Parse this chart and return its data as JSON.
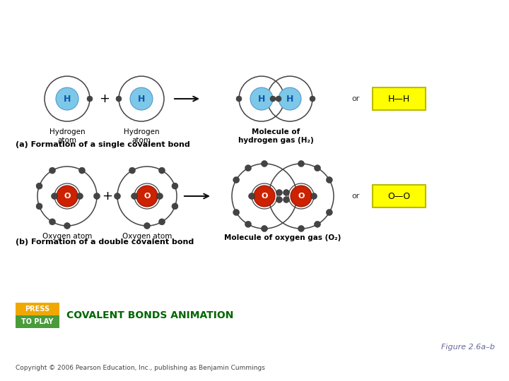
{
  "background_color": "#ffffff",
  "section_a_label": "(a) Formation of a single covalent bond",
  "section_b_label": "(b) Formation of a double covalent bond",
  "label_h_atom1": "Hydrogen\natom",
  "label_h_atom2": "Hydrogen\natom",
  "label_h_molecule": "Molecule of\nhydrogen gas (H₂)",
  "label_o_atom1": "Oxygen atom",
  "label_o_atom2": "Oxygen atom",
  "label_o_molecule": "Molecule of oxygen gas (O₂)",
  "press_to_play_text1": "PRESS",
  "press_to_play_text2": "TO PLAY",
  "animation_text": "COVALENT BONDS ANIMATION",
  "figure_label": "Figure 2.6a–b",
  "copyright_text": "Copyright © 2006 Pearson Education, Inc., publishing as Benjamin Cummings",
  "h_nucleus_color": "#7DC8E8",
  "o_nucleus_color": "#CC2200",
  "electron_color": "#444444",
  "orbit_color": "#444444",
  "arrow_color": "#111111",
  "yellow_box_color": "#FFFF00",
  "yellow_box_border": "#AAAAAA",
  "press_top_color": "#F0A800",
  "press_bottom_color": "#4A9C3A",
  "animation_text_color": "#006600",
  "figure_label_color": "#666699",
  "or_text_color": "#333333",
  "h_text_color": "#1155AA",
  "o_text_color": "#ffffff"
}
